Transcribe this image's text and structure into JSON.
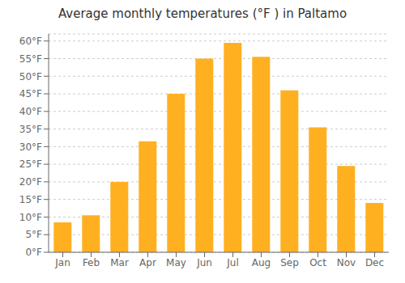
{
  "chart_data": {
    "type": "bar",
    "title": "Average monthly temperatures (°F ) in Paltamo",
    "categories": [
      "Jan",
      "Feb",
      "Mar",
      "Apr",
      "May",
      "Jun",
      "Jul",
      "Aug",
      "Sep",
      "Oct",
      "Nov",
      "Dec"
    ],
    "values": [
      8.5,
      10.5,
      20.0,
      31.5,
      45.0,
      55.0,
      59.5,
      55.5,
      46.0,
      35.5,
      24.5,
      14.0
    ],
    "color": "#FFB020",
    "ylim": [
      0,
      62
    ],
    "yticks": [
      {
        "value": 0,
        "label": "0°F"
      },
      {
        "value": 5,
        "label": "5°F"
      },
      {
        "value": 10,
        "label": "10°F"
      },
      {
        "value": 15,
        "label": "15°F"
      },
      {
        "value": 20,
        "label": "20°F"
      },
      {
        "value": 25,
        "label": "25°F"
      },
      {
        "value": 30,
        "label": "30°F"
      },
      {
        "value": 35,
        "label": "35°F"
      },
      {
        "value": 40,
        "label": "40°F"
      },
      {
        "value": 45,
        "label": "45°F"
      },
      {
        "value": 50,
        "label": "50°F"
      },
      {
        "value": 55,
        "label": "55°F"
      },
      {
        "value": 60,
        "label": "60°F"
      }
    ],
    "grid": true
  }
}
